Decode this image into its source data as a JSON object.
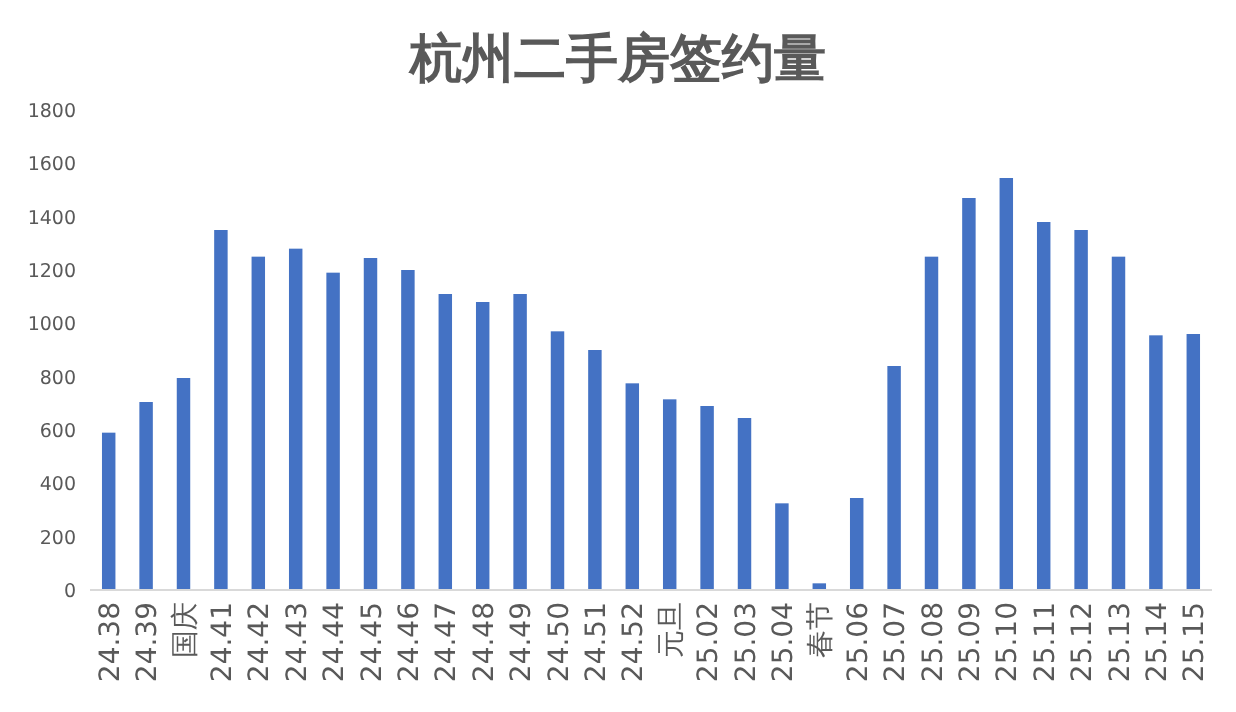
{
  "chart_data": {
    "type": "bar",
    "title": "杭州二手房签约量",
    "categories": [
      "24.38",
      "24.39",
      "国庆",
      "24.41",
      "24.42",
      "24.43",
      "24.44",
      "24.45",
      "24.46",
      "24.47",
      "24.48",
      "24.49",
      "24.50",
      "24.51",
      "24.52",
      "元旦",
      "25.02",
      "25.03",
      "25.04",
      "春节",
      "25.06",
      "25.07",
      "25.08",
      "25.09",
      "25.10",
      "25.11",
      "25.12",
      "25.13",
      "25.14",
      "25.15"
    ],
    "values": [
      590,
      705,
      795,
      1350,
      1250,
      1280,
      1190,
      1245,
      1200,
      1110,
      1080,
      1110,
      970,
      900,
      775,
      715,
      690,
      645,
      325,
      25,
      345,
      840,
      1250,
      1470,
      1545,
      1380,
      1350,
      1250,
      955,
      960
    ],
    "color": "#4472c4",
    "ylim": [
      0,
      1800
    ],
    "yticks": [
      0,
      200,
      400,
      600,
      800,
      1000,
      1200,
      1400,
      1600,
      1800
    ],
    "grid": false
  }
}
